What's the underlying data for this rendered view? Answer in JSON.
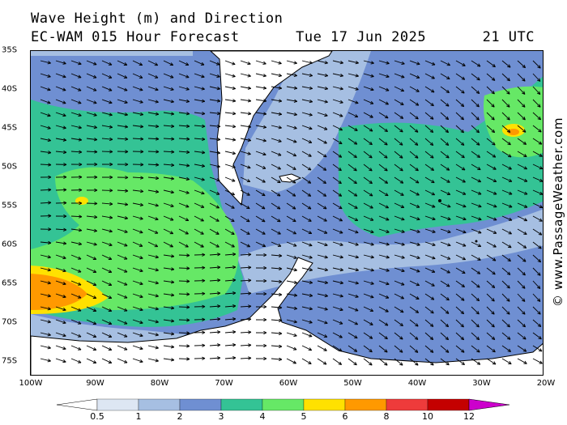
{
  "header": {
    "title": "Wave Height (m) and Direction",
    "model": "EC-WAM 015 Hour Forecast",
    "date": "Tue 17 Jun 2025",
    "time": "21 UTC"
  },
  "map": {
    "lat_labels": [
      "35S",
      "40S",
      "45S",
      "50S",
      "55S",
      "60S",
      "65S",
      "70S",
      "75S"
    ],
    "lon_labels": [
      "100W",
      "90W",
      "80W",
      "70W",
      "60W",
      "50W",
      "40W",
      "30W",
      "20W"
    ],
    "wind_direction": "predominantly west to east, veering southeast in the east",
    "land_color": "#ffffff",
    "coast_color": "#000000"
  },
  "legend": {
    "labels": [
      "0.5",
      "1",
      "2",
      "3",
      "4",
      "5",
      "6",
      "8",
      "10",
      "12"
    ],
    "colors": [
      "#dde6f3",
      "#a6bfe2",
      "#6f8fd2",
      "#34c395",
      "#66e866",
      "#ffe100",
      "#ff9900",
      "#ee3b3b",
      "#c40000",
      "#cc00cc"
    ]
  },
  "copyright": "© www.PassageWeather.com"
}
